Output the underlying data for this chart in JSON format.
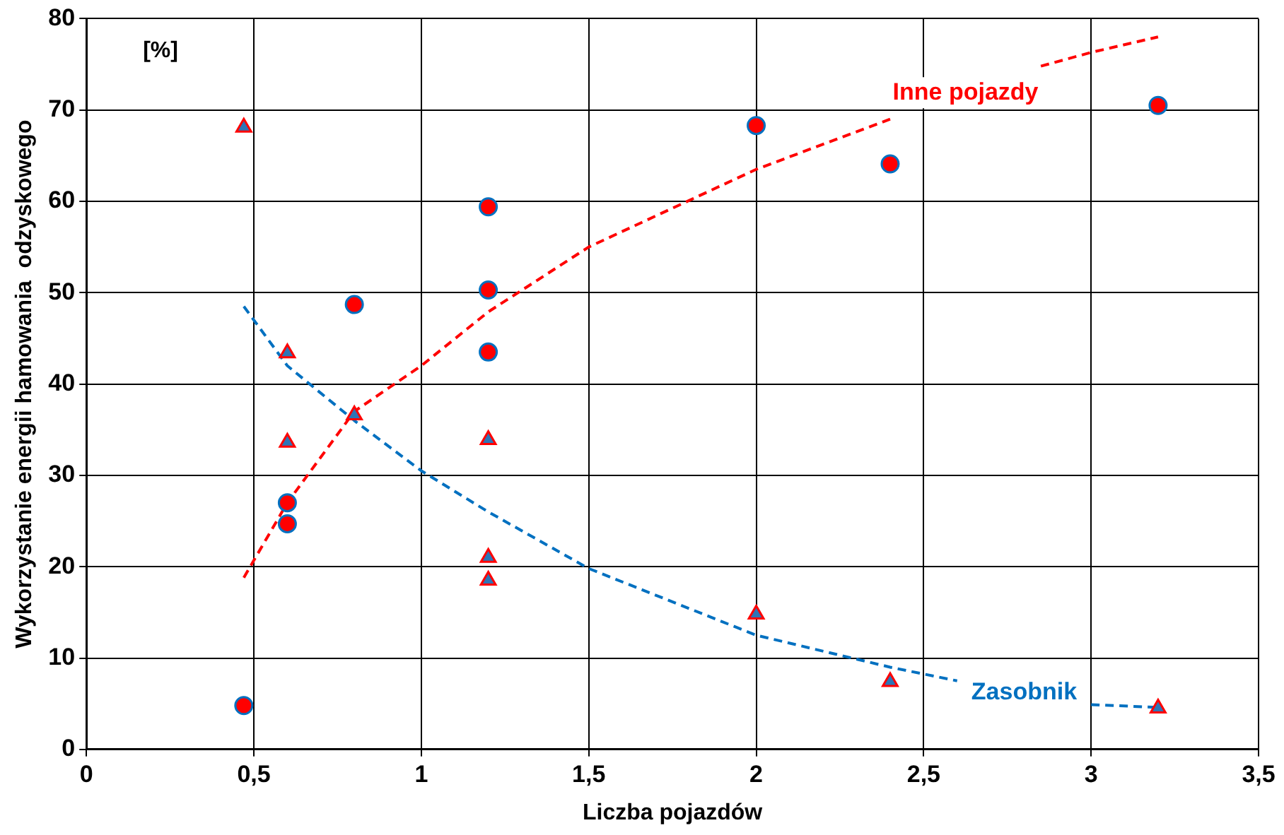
{
  "chart_data": {
    "type": "scatter",
    "xlabel": "Liczba pojazdów",
    "ylabel": "Wykorzystanie energii hamowania  odzyskowego",
    "annotations": [
      "[%]"
    ],
    "xlim": [
      0,
      3.5
    ],
    "xticks": [
      0,
      {
        "value": 0.5,
        "label": "0,5"
      },
      1,
      {
        "value": 1.5,
        "label": "1,5"
      },
      2,
      {
        "value": 2.5,
        "label": "2,5"
      },
      3,
      {
        "value": 3.5,
        "label": "3,5"
      }
    ],
    "ylim": [
      0,
      80
    ],
    "yticks": [
      0,
      10,
      20,
      30,
      40,
      50,
      60,
      70,
      80
    ],
    "grid": true,
    "legend": false,
    "series": [
      {
        "type": "scatter",
        "marker": "circle",
        "color": "#ff0000",
        "x": [
          0.47,
          0.6,
          0.6,
          0.8,
          1.2,
          1.2,
          1.2,
          2,
          2.4,
          3.2
        ],
        "values": [
          4.8,
          27,
          24.7,
          48.7,
          59.4,
          50.3,
          43.5,
          68.3,
          64.1,
          70.5
        ]
      },
      {
        "type": "scatter",
        "marker": "triangle",
        "color": "#2e75b6",
        "x": [
          0.47,
          0.6,
          0.6,
          0.8,
          1.2,
          1.2,
          1.2,
          2,
          2.4,
          3.2
        ],
        "values": [
          68.1,
          43.4,
          33.6,
          36.6,
          33.9,
          21,
          18.5,
          14.8,
          7.4,
          4.5
        ]
      },
      {
        "type": "line",
        "name": "Inne pojazdy",
        "color": "#ff0000",
        "marker": "none",
        "line_style": "dashed",
        "x": [
          0.47,
          0.6,
          0.8,
          1,
          1.2,
          1.5,
          2,
          2.4,
          2.62,
          2.85,
          3,
          3.2
        ],
        "values": [
          18.8,
          27,
          37,
          42,
          47.9,
          55,
          63.5,
          69,
          null,
          74.8,
          76.3,
          78
        ]
      },
      {
        "type": "line",
        "name": "Zasobnik",
        "color": "#0070c0",
        "marker": "none",
        "line_style": "dashed",
        "x": [
          0.47,
          0.6,
          0.8,
          1,
          1.2,
          1.5,
          2,
          2.4,
          2.6,
          2.8,
          3,
          3.2
        ],
        "values": [
          48.5,
          42,
          36,
          30.5,
          26,
          19.8,
          12.5,
          9,
          7.5,
          null,
          4.9,
          4.6
        ]
      }
    ]
  }
}
